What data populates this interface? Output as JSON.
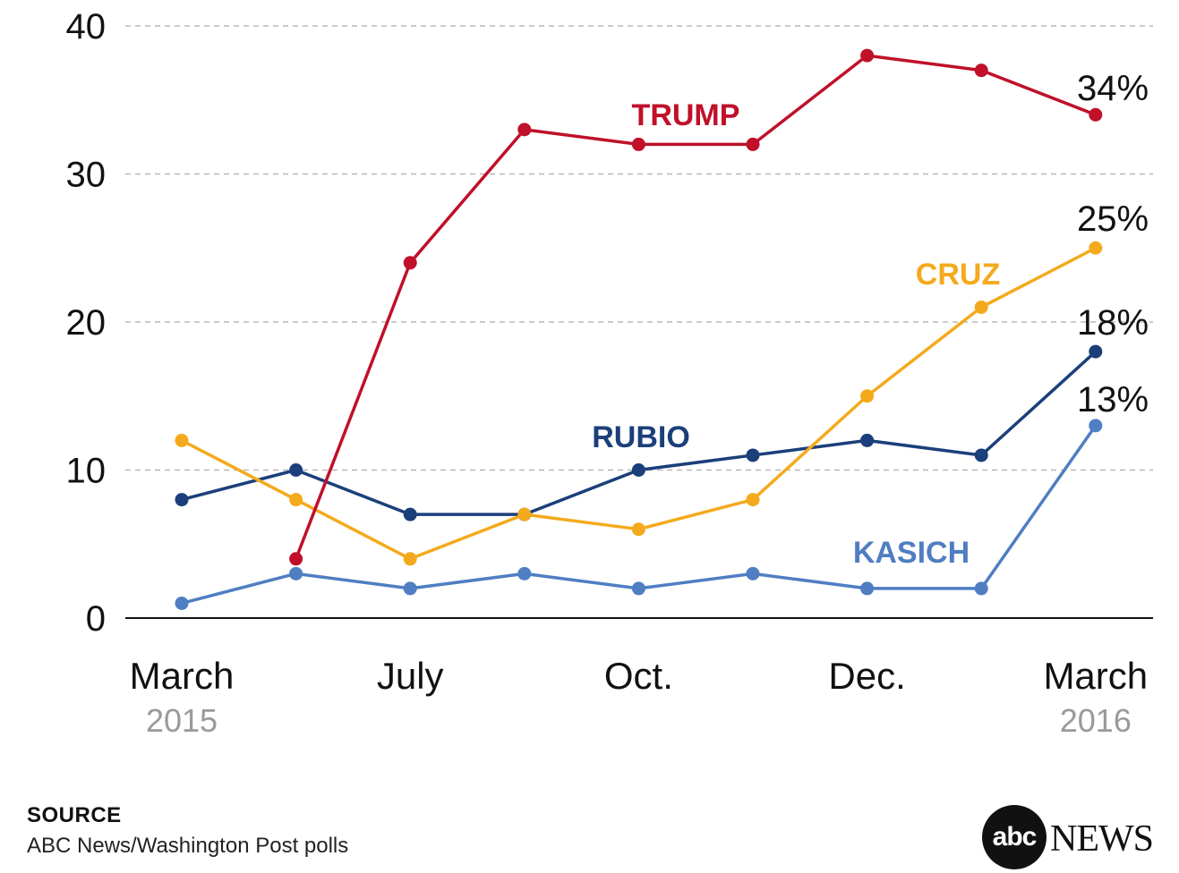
{
  "chart_data": {
    "type": "line",
    "x": [
      "March 2015",
      "",
      "July",
      "",
      "Oct.",
      "",
      "Dec.",
      "",
      "March 2016"
    ],
    "x_tick_labels": [
      {
        "index": 0,
        "label": "March",
        "sublabel": "2015"
      },
      {
        "index": 2,
        "label": "July",
        "sublabel": ""
      },
      {
        "index": 4,
        "label": "Oct.",
        "sublabel": ""
      },
      {
        "index": 6,
        "label": "Dec.",
        "sublabel": ""
      },
      {
        "index": 8,
        "label": "March",
        "sublabel": "2016"
      }
    ],
    "y_ticks": [
      0,
      10,
      20,
      30,
      40
    ],
    "ylim": [
      0,
      40
    ],
    "grid": true,
    "series": [
      {
        "name": "TRUMP",
        "color": "#c0102a",
        "values": [
          null,
          4,
          24,
          33,
          32,
          32,
          38,
          37,
          34
        ],
        "end_label": "34%"
      },
      {
        "name": "CRUZ",
        "color": "#f4aa1c",
        "values": [
          12,
          8,
          4,
          7,
          6,
          8,
          15,
          21,
          25
        ],
        "end_label": "25%"
      },
      {
        "name": "RUBIO",
        "color": "#1b3f7a",
        "values": [
          8,
          10,
          7,
          7,
          10,
          11,
          12,
          11,
          18
        ],
        "end_label": "18%"
      },
      {
        "name": "KASICH",
        "color": "#4f7ec2",
        "values": [
          1,
          3,
          2,
          3,
          2,
          3,
          2,
          2,
          13
        ],
        "end_label": "13%"
      }
    ]
  },
  "source": {
    "title": "SOURCE",
    "text": "ABC News/Washington Post polls"
  },
  "logo": {
    "circle_text": "abc",
    "news_text": "NEWS"
  }
}
